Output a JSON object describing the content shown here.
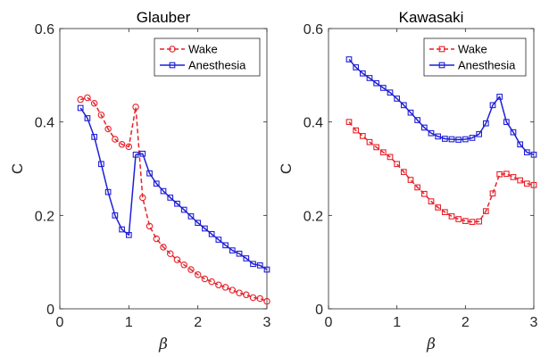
{
  "chart_data": [
    {
      "type": "line",
      "title": "Glauber",
      "xlabel": "β",
      "ylabel": "C",
      "xlim": [
        0,
        3
      ],
      "ylim": [
        0,
        0.6
      ],
      "xticks": [
        0,
        1,
        2,
        3
      ],
      "yticks": [
        0,
        0.2,
        0.4,
        0.6
      ],
      "xtick_labels": [
        "0",
        "1",
        "2",
        "3"
      ],
      "ytick_labels": [
        "0",
        "0.2",
        "0.4",
        "0.6"
      ],
      "grid": false,
      "legend_position": "top-right",
      "series": [
        {
          "name": "Wake",
          "color": "#e8212a",
          "line_style": "dashed",
          "marker": "circle",
          "x": [
            0.3,
            0.4,
            0.5,
            0.6,
            0.7,
            0.8,
            0.9,
            1.0,
            1.1,
            1.2,
            1.3,
            1.4,
            1.5,
            1.6,
            1.7,
            1.8,
            1.9,
            2.0,
            2.1,
            2.2,
            2.3,
            2.4,
            2.5,
            2.6,
            2.7,
            2.8,
            2.9,
            3.0
          ],
          "values": [
            0.448,
            0.452,
            0.44,
            0.415,
            0.385,
            0.363,
            0.352,
            0.347,
            0.432,
            0.238,
            0.177,
            0.15,
            0.132,
            0.118,
            0.105,
            0.094,
            0.084,
            0.073,
            0.064,
            0.058,
            0.051,
            0.046,
            0.04,
            0.034,
            0.03,
            0.024,
            0.022,
            0.016
          ]
        },
        {
          "name": "Anesthesia",
          "color": "#1f1fd6",
          "line_style": "solid",
          "marker": "square",
          "x": [
            0.3,
            0.4,
            0.5,
            0.6,
            0.7,
            0.8,
            0.9,
            1.0,
            1.1,
            1.2,
            1.3,
            1.4,
            1.5,
            1.6,
            1.7,
            1.8,
            1.9,
            2.0,
            2.1,
            2.2,
            2.3,
            2.4,
            2.5,
            2.6,
            2.7,
            2.8,
            2.9,
            3.0
          ],
          "values": [
            0.43,
            0.408,
            0.368,
            0.31,
            0.25,
            0.2,
            0.17,
            0.158,
            0.33,
            0.332,
            0.29,
            0.268,
            0.252,
            0.238,
            0.225,
            0.212,
            0.198,
            0.184,
            0.172,
            0.16,
            0.148,
            0.136,
            0.125,
            0.118,
            0.108,
            0.096,
            0.093,
            0.084
          ]
        }
      ]
    },
    {
      "type": "line",
      "title": "Kawasaki",
      "xlabel": "β",
      "ylabel": "C",
      "xlim": [
        0,
        3
      ],
      "ylim": [
        0,
        0.6
      ],
      "xticks": [
        0,
        1,
        2,
        3
      ],
      "yticks": [
        0,
        0.2,
        0.4,
        0.6
      ],
      "xtick_labels": [
        "0",
        "1",
        "2",
        "3"
      ],
      "ytick_labels": [
        "0",
        "0.2",
        "0.4",
        "0.6"
      ],
      "grid": false,
      "legend_position": "top-right",
      "series": [
        {
          "name": "Wake",
          "color": "#e8212a",
          "line_style": "dashed",
          "marker": "square",
          "x": [
            0.3,
            0.4,
            0.5,
            0.6,
            0.7,
            0.8,
            0.9,
            1.0,
            1.1,
            1.2,
            1.3,
            1.4,
            1.5,
            1.6,
            1.7,
            1.8,
            1.9,
            2.0,
            2.1,
            2.2,
            2.3,
            2.4,
            2.5,
            2.6,
            2.7,
            2.8,
            2.9,
            3.0
          ],
          "values": [
            0.4,
            0.382,
            0.37,
            0.357,
            0.346,
            0.335,
            0.325,
            0.31,
            0.293,
            0.276,
            0.26,
            0.246,
            0.23,
            0.217,
            0.207,
            0.198,
            0.192,
            0.188,
            0.186,
            0.187,
            0.209,
            0.247,
            0.288,
            0.289,
            0.282,
            0.275,
            0.268,
            0.265
          ]
        },
        {
          "name": "Anesthesia",
          "color": "#1f1fd6",
          "line_style": "solid",
          "marker": "square",
          "x": [
            0.3,
            0.4,
            0.5,
            0.6,
            0.7,
            0.8,
            0.9,
            1.0,
            1.1,
            1.2,
            1.3,
            1.4,
            1.5,
            1.6,
            1.7,
            1.8,
            1.9,
            2.0,
            2.1,
            2.2,
            2.3,
            2.4,
            2.5,
            2.6,
            2.7,
            2.8,
            2.9,
            3.0
          ],
          "values": [
            0.534,
            0.517,
            0.504,
            0.494,
            0.483,
            0.473,
            0.463,
            0.45,
            0.436,
            0.42,
            0.404,
            0.388,
            0.376,
            0.369,
            0.364,
            0.363,
            0.362,
            0.363,
            0.366,
            0.374,
            0.397,
            0.436,
            0.454,
            0.4,
            0.378,
            0.352,
            0.335,
            0.33
          ]
        }
      ]
    }
  ]
}
